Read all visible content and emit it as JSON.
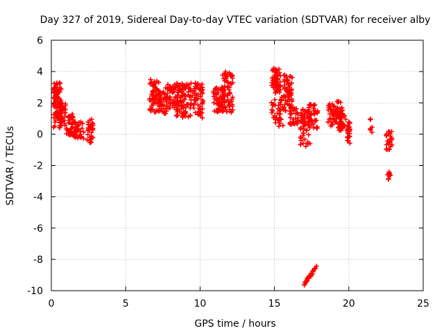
{
  "chart_data": {
    "type": "scatter",
    "title": "Day 327 of 2019, Sidereal Day-to-day VTEC variation (SDTVAR) for receiver alby",
    "xlabel": "GPS time / hours",
    "ylabel": "SDTVAR / TECUs",
    "xlim": [
      0,
      25
    ],
    "ylim": [
      -10,
      6
    ],
    "xticks": [
      0,
      5,
      10,
      15,
      20,
      25
    ],
    "yticks": [
      -10,
      -8,
      -6,
      -4,
      -2,
      0,
      2,
      4,
      6
    ],
    "grid": true,
    "marker": "+",
    "color": "#ff0000",
    "clusters": [
      {
        "x0": 0.15,
        "x1": 0.7,
        "y0": 0.4,
        "y1": 3.3,
        "n": 90
      },
      {
        "x0": 0.5,
        "x1": 1.0,
        "y0": 0.5,
        "y1": 2.2,
        "n": 40
      },
      {
        "x0": 1.0,
        "x1": 1.5,
        "y0": -0.1,
        "y1": 1.3,
        "n": 40
      },
      {
        "x0": 1.5,
        "x1": 2.2,
        "y0": -0.3,
        "y1": 0.8,
        "n": 40
      },
      {
        "x0": 2.4,
        "x1": 2.8,
        "y0": -0.6,
        "y1": 1.0,
        "n": 30
      },
      {
        "x0": 6.6,
        "x1": 7.3,
        "y0": 1.4,
        "y1": 3.6,
        "n": 60
      },
      {
        "x0": 7.2,
        "x1": 7.8,
        "y0": 1.3,
        "y1": 3.0,
        "n": 40
      },
      {
        "x0": 7.8,
        "x1": 8.6,
        "y0": 1.6,
        "y1": 3.3,
        "n": 50
      },
      {
        "x0": 8.4,
        "x1": 10.2,
        "y0": 1.0,
        "y1": 3.3,
        "n": 140
      },
      {
        "x0": 10.9,
        "x1": 11.6,
        "y0": 1.4,
        "y1": 3.0,
        "n": 50
      },
      {
        "x0": 11.4,
        "x1": 12.2,
        "y0": 1.3,
        "y1": 4.0,
        "n": 70
      },
      {
        "x0": 14.8,
        "x1": 15.4,
        "y0": 2.6,
        "y1": 4.2,
        "n": 60
      },
      {
        "x0": 14.8,
        "x1": 15.6,
        "y0": 0.5,
        "y1": 2.5,
        "n": 40
      },
      {
        "x0": 15.6,
        "x1": 16.2,
        "y0": 1.3,
        "y1": 3.8,
        "n": 50
      },
      {
        "x0": 16.0,
        "x1": 16.6,
        "y0": 0.6,
        "y1": 1.8,
        "n": 30
      },
      {
        "x0": 16.7,
        "x1": 17.4,
        "y0": -0.8,
        "y1": 1.6,
        "n": 60
      },
      {
        "x0": 17.3,
        "x1": 17.9,
        "y0": 0.3,
        "y1": 1.9,
        "n": 40
      },
      {
        "x0": 18.6,
        "x1": 19.6,
        "y0": 0.5,
        "y1": 2.1,
        "n": 70
      },
      {
        "x0": 19.3,
        "x1": 19.8,
        "y0": 0.2,
        "y1": 1.3,
        "n": 30
      },
      {
        "x0": 19.9,
        "x1": 20.1,
        "y0": -0.6,
        "y1": 0.8,
        "n": 25
      },
      {
        "x0": 21.4,
        "x1": 21.6,
        "y0": 0.0,
        "y1": 1.0,
        "n": 6
      },
      {
        "x0": 22.5,
        "x1": 22.9,
        "y0": -1.0,
        "y1": 0.2,
        "n": 25
      },
      {
        "x0": 22.6,
        "x1": 22.9,
        "y0": -2.9,
        "y1": -2.4,
        "n": 10
      }
    ],
    "tails": [
      {
        "x0": 17.0,
        "y0": -9.6,
        "x1": 17.8,
        "y1": -8.5,
        "n": 25
      },
      {
        "x0": 15.8,
        "y0": 3.7,
        "x1": 16.2,
        "y1": 2.2,
        "n": 15
      }
    ]
  }
}
